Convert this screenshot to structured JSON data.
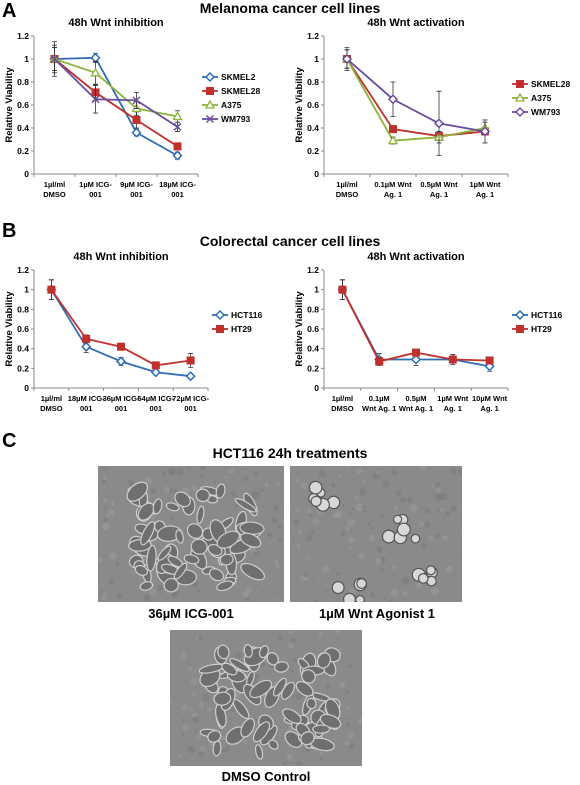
{
  "panels": {
    "a": "A",
    "b": "B",
    "c": "C"
  },
  "section_titles": {
    "melanoma": "Melanoma cancer cell lines",
    "colorectal": "Colorectal cancer cell lines",
    "hct": "HCT116 24h treatments"
  },
  "chart_data": [
    {
      "type": "line",
      "title": "48h Wnt inhibition",
      "ylabel": "Relative Viability",
      "ylim": [
        0,
        1.2
      ],
      "yticks": [
        "0",
        "0.2",
        "0.4",
        "0.6",
        "0.8",
        "1",
        "1.2"
      ],
      "categories": [
        [
          "1µl/ml",
          "DMSO"
        ],
        [
          "1µM ICG-",
          "001"
        ],
        [
          "9µM ICG-",
          "001"
        ],
        [
          "18µM ICG-",
          "001"
        ]
      ],
      "series": [
        {
          "name": "SKMEL2",
          "color": "#2E6DB4",
          "marker": "diamond",
          "values": [
            1.0,
            1.01,
            0.36,
            0.16
          ],
          "err": [
            0.15,
            0.04,
            0.03,
            0.03
          ]
        },
        {
          "name": "SKMEL28",
          "color": "#C0302C",
          "marker": "square",
          "values": [
            1.0,
            0.71,
            0.47,
            0.24
          ],
          "err": [
            0.1,
            0.07,
            0.07,
            0.03
          ]
        },
        {
          "name": "A375",
          "color": "#8DB33C",
          "marker": "triangle",
          "values": [
            1.0,
            0.88,
            0.57,
            0.5
          ],
          "err": [
            0.1,
            0.1,
            0.06,
            0.05
          ]
        },
        {
          "name": "WM793",
          "color": "#6A4C9C",
          "marker": "x",
          "values": [
            1.0,
            0.65,
            0.64,
            0.41
          ],
          "err": [
            0.12,
            0.12,
            0.07,
            0.04
          ]
        }
      ]
    },
    {
      "type": "line",
      "title": "48h Wnt activation",
      "ylabel": "Relative Viability",
      "ylim": [
        0,
        1.2
      ],
      "yticks": [
        "0",
        "0.2",
        "0.4",
        "0.6",
        "0.8",
        "1",
        "1.2"
      ],
      "categories": [
        [
          "1µl/ml",
          "DMSO"
        ],
        [
          "0.1µM Wnt",
          "Ag. 1"
        ],
        [
          "0.5µM Wnt",
          "Ag. 1"
        ],
        [
          "1µM Wnt",
          "Ag. 1"
        ]
      ],
      "series": [
        {
          "name": "SKMEL28",
          "color": "#C0302C",
          "marker": "square",
          "values": [
            1.0,
            0.39,
            0.33,
            0.37
          ],
          "err": [
            0.08,
            0.03,
            0.04,
            0.03
          ]
        },
        {
          "name": "A375",
          "color": "#8DB33C",
          "marker": "triangle",
          "values": [
            1.0,
            0.29,
            0.32,
            0.4
          ],
          "err": [
            0.08,
            0.03,
            0.05,
            0.05
          ]
        },
        {
          "name": "WM793",
          "color": "#6A4C9C",
          "marker": "diamond",
          "values": [
            1.0,
            0.65,
            0.44,
            0.37
          ],
          "err": [
            0.1,
            0.15,
            0.28,
            0.1
          ]
        }
      ]
    },
    {
      "type": "line",
      "title": "48h Wnt inhibition",
      "ylabel": "Relative Viability",
      "ylim": [
        0,
        1.2
      ],
      "yticks": [
        "0",
        "0.2",
        "0.4",
        "0.6",
        "0.8",
        "1",
        "1.2"
      ],
      "categories": [
        [
          "1µl/ml",
          "DMSO"
        ],
        [
          "18µM ICG-",
          "001"
        ],
        [
          "36µM ICG-",
          "001"
        ],
        [
          "54µM ICG-",
          "001"
        ],
        [
          "72µM ICG-",
          "001"
        ]
      ],
      "series": [
        {
          "name": "HCT116",
          "color": "#2E6DB4",
          "marker": "diamond",
          "values": [
            1.0,
            0.42,
            0.27,
            0.16,
            0.12
          ],
          "err": [
            0.1,
            0.06,
            0.04,
            0.02,
            0.02
          ]
        },
        {
          "name": "HT29",
          "color": "#C0302C",
          "marker": "square",
          "values": [
            1.0,
            0.5,
            0.42,
            0.23,
            0.28
          ],
          "err": [
            0.1,
            0.04,
            0.02,
            0.02,
            0.07
          ]
        }
      ]
    },
    {
      "type": "line",
      "title": "48h Wnt activation",
      "ylabel": "Relative Viability",
      "ylim": [
        0,
        1.2
      ],
      "yticks": [
        "0",
        "0.2",
        "0.4",
        "0.6",
        "0.8",
        "1",
        "1.2"
      ],
      "categories": [
        [
          "1µl/ml",
          "DMSO"
        ],
        [
          "0.1µM",
          "Wnt Ag. 1"
        ],
        [
          "0.5µM",
          "Wnt Ag. 1"
        ],
        [
          "1µM Wnt",
          "Ag. 1"
        ],
        [
          "10µM Wnt",
          "Ag. 1"
        ]
      ],
      "series": [
        {
          "name": "HCT116",
          "color": "#2E6DB4",
          "marker": "diamond",
          "values": [
            1.0,
            0.29,
            0.29,
            0.29,
            0.22
          ],
          "err": [
            0.1,
            0.06,
            0.06,
            0.05,
            0.05
          ]
        },
        {
          "name": "HT29",
          "color": "#C0302C",
          "marker": "square",
          "values": [
            1.0,
            0.27,
            0.36,
            0.29,
            0.28
          ],
          "err": [
            0.1,
            0.04,
            0.03,
            0.03,
            0.03
          ]
        }
      ]
    }
  ],
  "images": [
    {
      "caption": "36µM ICG-001"
    },
    {
      "caption": "1µM Wnt Agonist 1"
    },
    {
      "caption": "DMSO Control"
    }
  ]
}
